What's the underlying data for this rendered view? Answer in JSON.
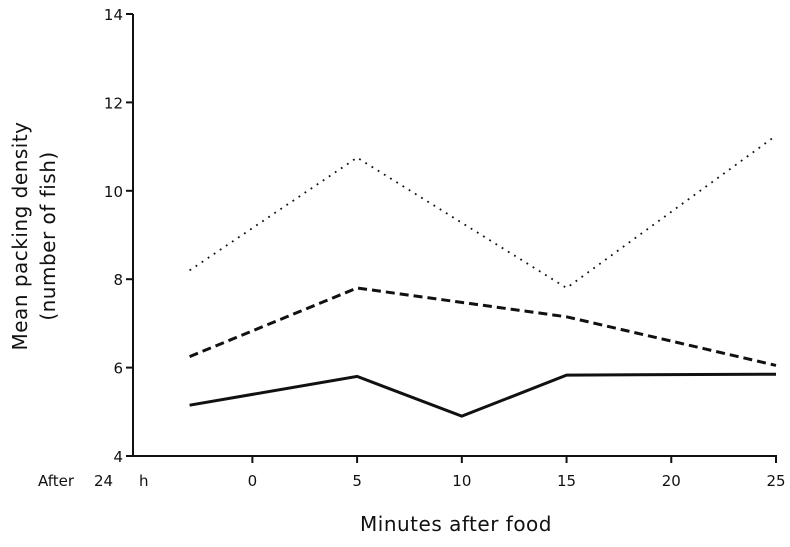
{
  "chart_data": {
    "type": "line",
    "title": "",
    "xlabel": "Minutes after food",
    "ylabel_line1": "Mean packing density",
    "ylabel_line2": "(number of fish)",
    "x_categories": [
      "After 24 h",
      "0",
      "5",
      "10",
      "15",
      "20",
      "25"
    ],
    "x_values": [
      -3,
      0,
      5,
      10,
      15,
      20,
      25
    ],
    "xlim": [
      -5.7,
      25
    ],
    "ylim": [
      4,
      14
    ],
    "y_ticks": [
      4,
      6,
      8,
      10,
      12,
      14
    ],
    "x_tick_labels": [
      {
        "x": 0,
        "label": "0"
      },
      {
        "x": 5,
        "label": "5"
      },
      {
        "x": 10,
        "label": "10"
      },
      {
        "x": 15,
        "label": "15"
      },
      {
        "x": 20,
        "label": "20"
      },
      {
        "x": 25,
        "label": "25"
      }
    ],
    "after24_label": {
      "before": "After",
      "number": "24",
      "unit": "h"
    },
    "grid": false,
    "legend": "none",
    "series": [
      {
        "style": "solid",
        "color": "#111111",
        "points": [
          [
            -3,
            5.15
          ],
          [
            5,
            5.8
          ],
          [
            10,
            4.9
          ],
          [
            15,
            5.83
          ],
          [
            25,
            5.85
          ]
        ]
      },
      {
        "style": "dashed",
        "color": "#111111",
        "points": [
          [
            -3,
            6.25
          ],
          [
            5,
            7.8
          ],
          [
            15,
            7.15
          ],
          [
            25,
            6.05
          ]
        ]
      },
      {
        "style": "dotted",
        "color": "#111111",
        "points": [
          [
            -3,
            8.2
          ],
          [
            5,
            10.75
          ],
          [
            15,
            7.8
          ],
          [
            25,
            11.25
          ]
        ]
      }
    ]
  }
}
